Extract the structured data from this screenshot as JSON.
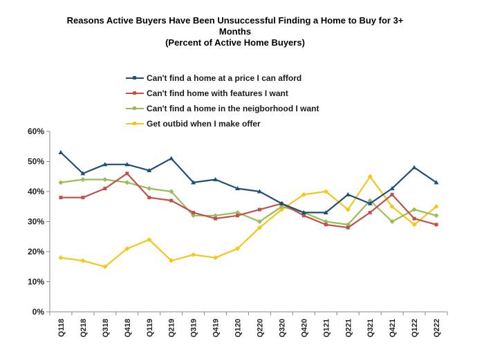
{
  "chart_data": {
    "type": "line",
    "title_lines": [
      "Reasons Active Buyers Have Been Unsuccessful Finding a Home to Buy for 3+",
      "Months",
      "(Percent of Active Home Buyers)"
    ],
    "xlabel": "",
    "ylabel": "",
    "ylim": [
      0,
      60
    ],
    "y_ticks": [
      "0%",
      "10%",
      "20%",
      "30%",
      "40%",
      "50%",
      "60%"
    ],
    "y_tick_values": [
      0,
      10,
      20,
      30,
      40,
      50,
      60
    ],
    "grid": false,
    "legend_position": "top-center",
    "categories": [
      "Q118",
      "Q218",
      "Q318",
      "Q418",
      "Q119",
      "Q219",
      "Q319",
      "Q419",
      "Q120",
      "Q220",
      "Q320",
      "Q420",
      "Q121",
      "Q221",
      "Q321",
      "Q421",
      "Q122",
      "Q222"
    ],
    "series": [
      {
        "name": "Can't find a home at a price I can afford",
        "color": "#1f4e79",
        "marker": "triangle",
        "values": [
          53,
          46,
          49,
          49,
          47,
          51,
          43,
          44,
          41,
          40,
          36,
          33,
          33,
          39,
          36,
          41,
          48,
          43
        ]
      },
      {
        "name": "Can't find home with features I want",
        "color": "#c0504d",
        "marker": "square",
        "values": [
          38,
          38,
          41,
          46,
          38,
          37,
          33,
          31,
          32,
          34,
          36,
          32,
          29,
          28,
          33,
          39,
          31,
          29
        ]
      },
      {
        "name": "Can't find a home in the neigborhood I want",
        "color": "#9bbb59",
        "marker": "diamond",
        "values": [
          43,
          44,
          44,
          43,
          41,
          40,
          32,
          32,
          33,
          30,
          35,
          33,
          30,
          29,
          37,
          30,
          34,
          32
        ]
      },
      {
        "name": "Get outbid when I make offer",
        "color": "#f5c518",
        "marker": "diamond",
        "values": [
          18,
          17,
          15,
          21,
          24,
          17,
          19,
          18,
          21,
          28,
          34,
          39,
          40,
          34,
          45,
          35,
          29,
          35
        ]
      }
    ]
  }
}
